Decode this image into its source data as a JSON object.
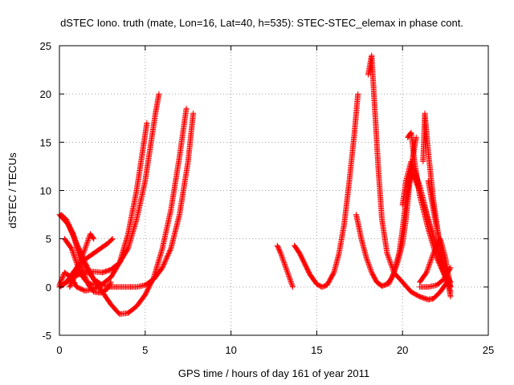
{
  "chart_data": {
    "type": "scatter",
    "title": "dSTEC Iono. truth (mate, Lon=16, Lat=40, h=535): STEC-STEC_elemax in phase cont.",
    "xlabel": "GPS time / hours of day 161 of year 2011",
    "ylabel": "dSTEC  / TECUs",
    "xlim": [
      0,
      25
    ],
    "ylim": [
      -5,
      25
    ],
    "xticks": [
      "0",
      "5",
      "10",
      "15",
      "20",
      "25"
    ],
    "yticks": [
      "-5",
      "0",
      "5",
      "10",
      "15",
      "20",
      "25"
    ],
    "grid": true,
    "marker": "+",
    "color": "#ff0000",
    "series": [
      {
        "x": [
          0.0,
          0.5,
          1.0,
          1.5,
          2.0,
          2.5,
          3.0,
          3.5,
          4.0,
          4.5,
          5.0,
          5.3,
          5.6,
          5.8
        ],
        "y": [
          0.0,
          0.6,
          1.2,
          1.5,
          1.6,
          1.5,
          1.8,
          2.5,
          4.0,
          7.0,
          11.0,
          14.5,
          18.0,
          20.0
        ]
      },
      {
        "x": [
          0.0,
          0.3,
          0.7,
          1.0,
          1.5,
          2.0,
          2.5,
          3.0,
          3.5,
          4.0,
          4.5,
          4.8,
          5.1
        ],
        "y": [
          0.2,
          1.5,
          1.0,
          0.0,
          -0.4,
          -0.2,
          0.3,
          1.0,
          2.5,
          5.5,
          10.0,
          13.5,
          17.0
        ]
      },
      {
        "x": [
          0.0,
          0.5,
          1.0,
          1.5,
          2.0,
          2.5,
          3.0,
          3.5,
          4.0,
          4.5,
          5.0,
          5.5,
          6.0,
          6.5,
          7.0,
          7.4
        ],
        "y": [
          7.5,
          6.5,
          4.5,
          2.5,
          0.8,
          -0.5,
          -1.8,
          -2.8,
          -2.7,
          -2.0,
          -0.8,
          1.0,
          4.0,
          8.0,
          13.5,
          18.5
        ]
      },
      {
        "x": [
          0.1,
          0.4,
          0.8,
          1.2,
          1.6,
          2.0,
          2.5,
          3.0,
          3.5,
          4.0,
          4.5,
          5.0,
          5.5,
          6.0,
          6.5,
          7.0,
          7.5,
          7.8
        ],
        "y": [
          7.5,
          7.0,
          5.5,
          3.5,
          1.8,
          0.8,
          0.2,
          0.0,
          0.0,
          0.0,
          0.0,
          0.2,
          0.8,
          2.0,
          4.0,
          7.5,
          13.0,
          18.0
        ]
      },
      {
        "x": [
          0.5,
          0.8,
          1.1,
          1.4,
          1.7,
          2.0,
          2.4,
          2.8,
          3.0
        ],
        "y": [
          6.5,
          5.5,
          3.5,
          1.5,
          0.2,
          -0.5,
          -0.6,
          -0.2,
          0.5
        ]
      },
      {
        "x": [
          0.6,
          1.0,
          1.3,
          1.6,
          1.8,
          2.0
        ],
        "y": [
          0.0,
          1.5,
          3.0,
          4.5,
          5.5,
          5.0
        ]
      },
      {
        "x": [
          0.3,
          0.7,
          1.0,
          1.3,
          1.6,
          2.0
        ],
        "y": [
          5.0,
          4.0,
          2.5,
          1.2,
          0.5,
          0.2
        ]
      },
      {
        "x": [
          0.0,
          0.4,
          0.8,
          1.2,
          1.6,
          2.0,
          2.4,
          2.8,
          3.1
        ],
        "y": [
          0.0,
          0.5,
          1.5,
          2.5,
          3.0,
          3.5,
          4.0,
          4.5,
          5.0
        ]
      },
      {
        "x": [
          12.7,
          12.9,
          13.1,
          13.3,
          13.5,
          13.6
        ],
        "y": [
          4.3,
          3.5,
          2.5,
          1.5,
          0.5,
          0.0
        ]
      },
      {
        "x": [
          13.7,
          14.0,
          14.3,
          14.6,
          15.0,
          15.3,
          15.6,
          16.0,
          16.3,
          16.6,
          16.9,
          17.2,
          17.4
        ],
        "y": [
          4.3,
          3.5,
          2.4,
          1.3,
          0.3,
          0.0,
          0.2,
          1.5,
          3.5,
          6.5,
          11.0,
          16.0,
          20.0
        ]
      },
      {
        "x": [
          17.3,
          17.6,
          17.9,
          18.2,
          18.5,
          18.8,
          19.1,
          19.4,
          19.7,
          20.0,
          20.2,
          20.4,
          20.6,
          20.8
        ],
        "y": [
          7.5,
          5.0,
          3.0,
          1.5,
          0.5,
          0.1,
          0.3,
          1.0,
          2.5,
          4.5,
          7.0,
          10.5,
          13.5,
          15.5
        ]
      },
      {
        "x": [
          18.0,
          18.2,
          18.4,
          18.6,
          18.8,
          19.1,
          19.5,
          20.0,
          20.5,
          21.0,
          21.5,
          21.8,
          22.2,
          22.6
        ],
        "y": [
          22.0,
          24.0,
          18.0,
          12.0,
          7.0,
          3.5,
          1.5,
          0.5,
          -0.5,
          -1.0,
          -1.3,
          -1.2,
          -0.5,
          0.5
        ]
      },
      {
        "x": [
          19.2,
          19.5,
          19.8,
          20.0,
          20.2,
          20.5,
          21.0,
          21.5,
          22.0,
          22.4,
          22.8
        ],
        "y": [
          0.3,
          1.5,
          3.5,
          6.0,
          9.0,
          12.0,
          10.0,
          7.0,
          4.0,
          1.5,
          0.0
        ]
      },
      {
        "x": [
          20.0,
          20.2,
          20.5,
          21.0,
          21.5,
          22.0,
          22.5,
          22.8
        ],
        "y": [
          8.5,
          11.0,
          13.0,
          10.5,
          7.0,
          4.0,
          1.5,
          0.5
        ]
      },
      {
        "x": [
          20.3,
          20.5,
          20.7,
          21.0,
          21.5,
          22.0,
          22.5,
          22.8
        ],
        "y": [
          15.5,
          16.0,
          13.0,
          9.5,
          6.0,
          3.0,
          1.0,
          0.0
        ]
      },
      {
        "x": [
          21.2,
          21.3,
          21.5,
          21.8,
          22.2,
          22.6,
          22.8
        ],
        "y": [
          13.0,
          18.0,
          14.0,
          9.0,
          4.0,
          0.5,
          -0.5
        ]
      },
      {
        "x": [
          21.0,
          21.4,
          21.8,
          22.2,
          22.5,
          22.8
        ],
        "y": [
          0.5,
          1.5,
          3.5,
          5.0,
          3.0,
          0.0
        ]
      },
      {
        "x": [
          21.5,
          21.9,
          22.3,
          22.6,
          22.8
        ],
        "y": [
          11.0,
          7.0,
          3.5,
          1.0,
          -1.0
        ]
      },
      {
        "x": [
          21.0,
          21.5,
          22.0,
          22.4,
          22.8
        ],
        "y": [
          0.0,
          0.0,
          0.2,
          0.8,
          2.0
        ]
      }
    ]
  }
}
